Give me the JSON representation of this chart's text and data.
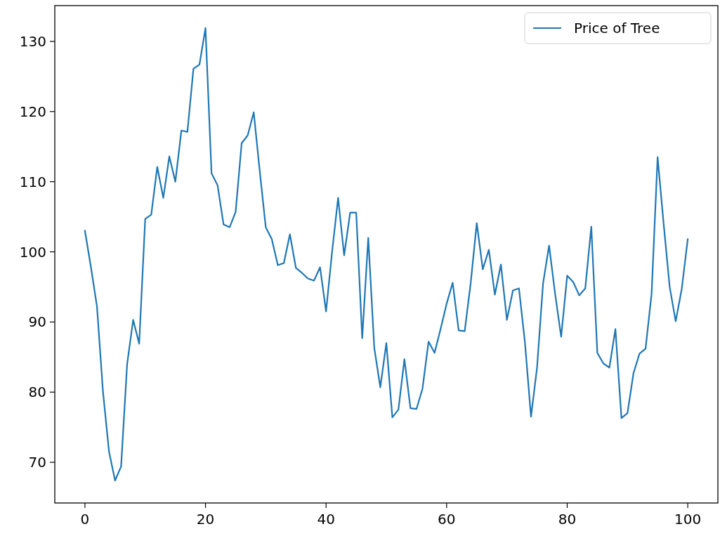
{
  "chart_data": {
    "type": "line",
    "x": [
      0,
      1,
      2,
      3,
      4,
      5,
      6,
      7,
      8,
      9,
      10,
      11,
      12,
      13,
      14,
      15,
      16,
      17,
      18,
      19,
      20,
      21,
      22,
      23,
      24,
      25,
      26,
      27,
      28,
      29,
      30,
      31,
      32,
      33,
      34,
      35,
      36,
      37,
      38,
      39,
      40,
      41,
      42,
      43,
      44,
      45,
      46,
      47,
      48,
      49,
      50,
      51,
      52,
      53,
      54,
      55,
      56,
      57,
      58,
      59,
      60,
      61,
      62,
      63,
      64,
      65,
      66,
      67,
      68,
      69,
      70,
      71,
      72,
      73,
      74,
      75,
      76,
      77,
      78,
      79,
      80,
      81,
      82,
      83,
      84,
      85,
      86,
      87,
      88,
      89,
      90,
      91,
      92,
      93,
      94,
      95,
      96,
      97,
      98,
      99,
      100
    ],
    "series": [
      {
        "name": "Price of Tree",
        "color": "#1f77b4",
        "values": [
          103.0,
          97.8,
          92.2,
          80,
          71.5,
          67.4,
          69.4,
          84,
          90.3,
          86.9,
          104.7,
          105.3,
          112.1,
          107.7,
          113.6,
          110,
          117.3,
          117.1,
          126.1,
          126.7,
          131.9,
          111.2,
          109.5,
          103.9,
          103.5,
          105.7,
          115.5,
          116.6,
          119.9,
          111.5,
          103.5,
          101.8,
          98.1,
          98.4,
          102.5,
          97.7,
          97,
          96.2,
          95.9,
          97.8,
          91.5,
          100,
          107.7,
          99.5,
          105.6,
          105.6,
          87.7,
          102,
          86.3,
          80.7,
          87,
          76.4,
          77.5,
          84.7,
          77.7,
          77.6,
          80.5,
          87.2,
          85.6,
          89,
          92.6,
          95.6,
          88.8,
          88.7,
          95.6,
          104.1,
          97.5,
          100.3,
          93.9,
          98.2,
          90.3,
          94.5,
          94.8,
          87,
          76.5,
          83.5,
          95.5,
          100.9,
          94,
          87.9,
          96.6,
          95.7,
          93.8,
          94.8,
          103.6,
          85.6,
          84.1,
          83.5,
          89,
          76.3,
          77,
          82.7,
          85.5,
          86.2,
          94,
          113.5,
          104,
          95,
          90.1,
          94.7,
          101.8
        ]
      }
    ],
    "xlim": [
      -5,
      105
    ],
    "ylim": [
      64.2,
      135.1
    ],
    "xticks": [
      0,
      20,
      40,
      60,
      80,
      100
    ],
    "yticks": [
      70,
      80,
      90,
      100,
      110,
      120,
      130
    ],
    "legend": "top right",
    "grid": false
  }
}
